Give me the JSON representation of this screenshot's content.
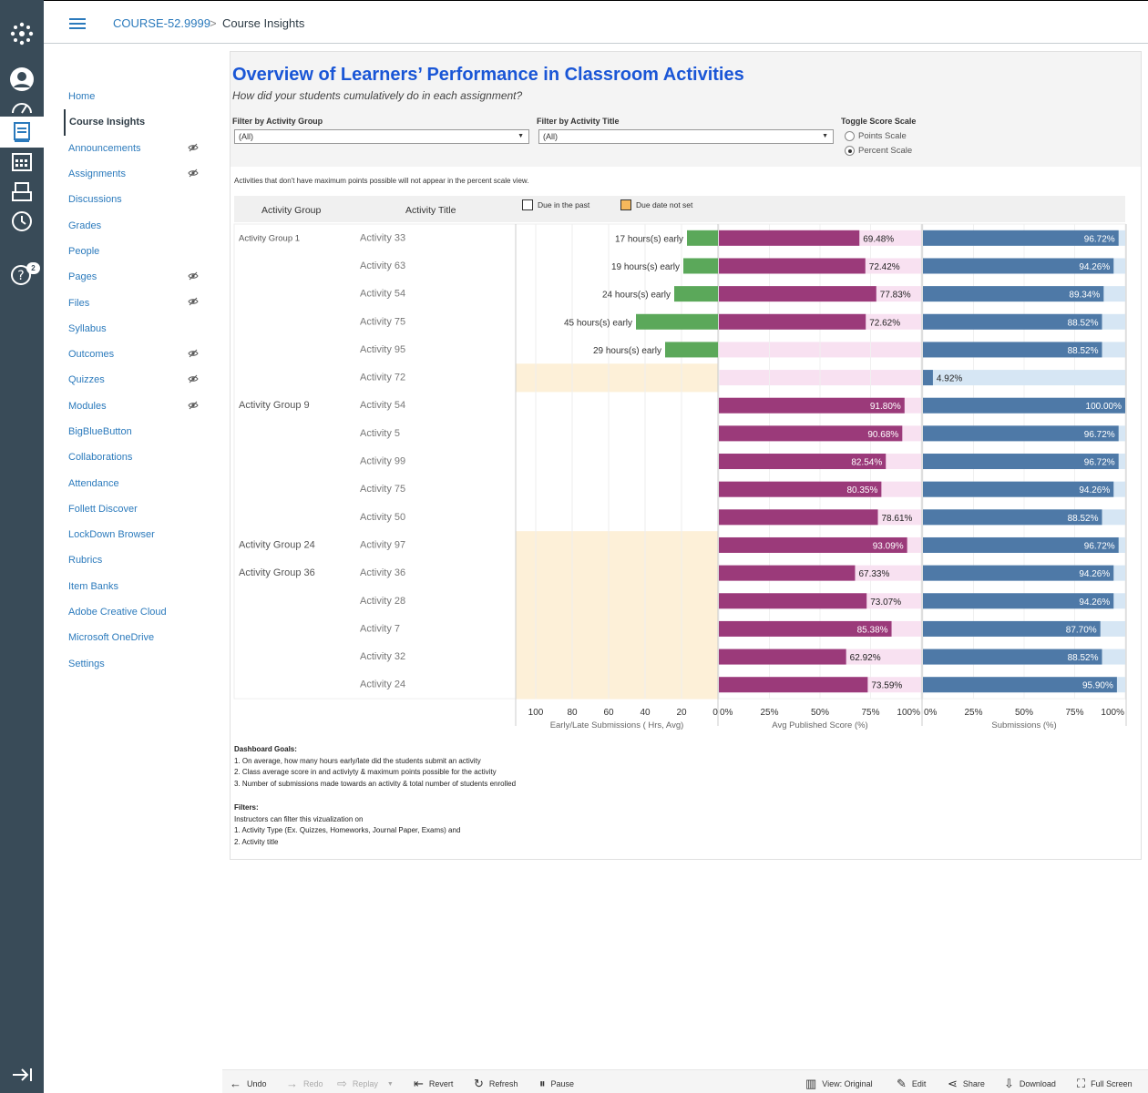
{
  "breadcrumb": {
    "course": "COURSE-52.9999",
    "separator": ">",
    "page": "Course Insights"
  },
  "global_nav": {
    "badge": "2",
    "icons": [
      "logo-icon",
      "account-icon",
      "dashboard-icon",
      "courses-icon",
      "calendar-icon",
      "inbox-icon",
      "history-icon",
      "help-icon",
      "collapse-nav-icon"
    ]
  },
  "course_nav": [
    {
      "label": "Home",
      "hidden": false
    },
    {
      "label": "Course Insights",
      "hidden": false,
      "active": true
    },
    {
      "label": "Announcements",
      "hidden": true
    },
    {
      "label": "Assignments",
      "hidden": true
    },
    {
      "label": "Discussions",
      "hidden": false
    },
    {
      "label": "Grades",
      "hidden": false
    },
    {
      "label": "People",
      "hidden": false
    },
    {
      "label": "Pages",
      "hidden": true
    },
    {
      "label": "Files",
      "hidden": true
    },
    {
      "label": "Syllabus",
      "hidden": false
    },
    {
      "label": "Outcomes",
      "hidden": true
    },
    {
      "label": "Quizzes",
      "hidden": true
    },
    {
      "label": "Modules",
      "hidden": true
    },
    {
      "label": "BigBlueButton",
      "hidden": false
    },
    {
      "label": "Collaborations",
      "hidden": false
    },
    {
      "label": "Attendance",
      "hidden": false
    },
    {
      "label": "Follett Discover",
      "hidden": false
    },
    {
      "label": "LockDown Browser",
      "hidden": false
    },
    {
      "label": "Rubrics",
      "hidden": false
    },
    {
      "label": "Item Banks",
      "hidden": false
    },
    {
      "label": "Adobe Creative Cloud",
      "hidden": false
    },
    {
      "label": "Microsoft OneDrive",
      "hidden": false
    },
    {
      "label": "Settings",
      "hidden": false
    }
  ],
  "dashboard": {
    "title": "Overview of Learners’ Performance  in Classroom Activities",
    "subtitle": "How did your students cumulatively do in each assignment?",
    "filter_group": {
      "label": "Filter by Activity Group",
      "value": "(All)"
    },
    "filter_title": {
      "label": "Filter by Activity Title",
      "value": "(All)"
    },
    "toggle": {
      "label": "Toggle Score Scale",
      "options": [
        "Points Scale",
        "Percent Scale"
      ],
      "selected": "Percent Scale"
    },
    "note": "Activities that don't have maximum points possible will not appear in the percent scale view.",
    "col_group": "Activity Group",
    "col_title": "Activity Title",
    "legend": [
      {
        "label": "Due in the past",
        "color": "#ffffff"
      },
      {
        "label": "Due date not set",
        "color": "#f5b85c"
      }
    ],
    "goals": {
      "heading": "Dashboard Goals:",
      "items": [
        "1. On average, how many hours early/late did the students submit an activity",
        "2. Class average score in and activiyty & maximum points possible for the activity",
        "3. Number of submissions made towards an activity & total number of students enrolled"
      ]
    },
    "filters_info": {
      "heading": "Filters:",
      "items": [
        "Instructors can filter this vizualization on",
        "1. Activity Type (Ex. Quizzes, Homeworks, Journal Paper, Exams) and",
        "2. Activity title"
      ]
    }
  },
  "chart_data": [
    {
      "type": "bar",
      "title": "",
      "xlabel": "Early/Late Submissions ( Hrs, Avg)",
      "xlim": [
        100,
        0
      ],
      "ticks": [
        "100",
        "80",
        "60",
        "40",
        "20",
        "0"
      ],
      "categories": [
        "Activity 33",
        "Activity 63",
        "Activity 54",
        "Activity 75",
        "Activity 95",
        "Activity 72",
        "Activity 54",
        "Activity 5",
        "Activity 99",
        "Activity 75",
        "Activity 50",
        "Activity 97",
        "Activity 36",
        "Activity 28",
        "Activity 7",
        "Activity 32",
        "Activity 24"
      ],
      "groups": [
        "Activity Group 1",
        "",
        "",
        "",
        "",
        "",
        "Activity Group 9",
        "",
        "",
        "",
        "",
        "Activity Group 24",
        "Activity Group 36",
        "",
        "",
        "",
        ""
      ],
      "values": [
        17,
        19,
        24,
        45,
        29,
        null,
        null,
        null,
        null,
        null,
        null,
        null,
        null,
        null,
        null,
        null,
        null
      ],
      "labels": [
        "17 hours(s) early",
        "19 hours(s) early",
        "24 hours(s) early",
        "45 hours(s) early",
        "29 hours(s) early",
        "",
        "",
        "",
        "",
        "",
        "",
        "",
        "",
        "",
        "",
        "",
        ""
      ],
      "due_not_set": [
        false,
        false,
        false,
        false,
        false,
        true,
        false,
        false,
        false,
        false,
        false,
        true,
        true,
        true,
        true,
        true,
        true
      ],
      "color": "#5ba85a"
    },
    {
      "type": "bar",
      "xlabel": "Avg Published Score (%)",
      "xlim": [
        0,
        100
      ],
      "ticks": [
        "0%",
        "25%",
        "50%",
        "75%",
        "100%"
      ],
      "values": [
        69.48,
        72.42,
        77.83,
        72.62,
        null,
        null,
        91.8,
        90.68,
        82.54,
        80.35,
        78.61,
        93.09,
        67.33,
        73.07,
        85.38,
        62.92,
        73.59
      ],
      "labels": [
        "69.48%",
        "72.42%",
        "77.83%",
        "72.62%",
        "",
        "",
        "91.80%",
        "90.68%",
        "82.54%",
        "80.35%",
        "78.61%",
        "93.09%",
        "67.33%",
        "73.07%",
        "85.38%",
        "62.92%",
        "73.59%"
      ],
      "color": "#9b3a7a",
      "bg": "#f8e1f1"
    },
    {
      "type": "bar",
      "xlabel": "Submissions (%)",
      "xlim": [
        0,
        100
      ],
      "ticks": [
        "0%",
        "25%",
        "50%",
        "75%",
        "100%"
      ],
      "values": [
        96.72,
        94.26,
        89.34,
        88.52,
        88.52,
        4.92,
        100.0,
        96.72,
        96.72,
        94.26,
        88.52,
        96.72,
        94.26,
        94.26,
        87.7,
        88.52,
        95.9
      ],
      "labels": [
        "96.72%",
        "94.26%",
        "89.34%",
        "88.52%",
        "88.52%",
        "4.92%",
        "100.00%",
        "96.72%",
        "96.72%",
        "94.26%",
        "88.52%",
        "96.72%",
        "94.26%",
        "94.26%",
        "87.70%",
        "88.52%",
        "95.90%"
      ],
      "color": "#4e79a7",
      "bg": "#d6e6f4"
    }
  ],
  "toolbar": {
    "undo": "Undo",
    "redo": "Redo",
    "replay": "Replay",
    "revert": "Revert",
    "refresh": "Refresh",
    "pause": "Pause",
    "view": "View: Original",
    "edit": "Edit",
    "share": "Share",
    "download": "Download",
    "fullscreen": "Full Screen"
  }
}
